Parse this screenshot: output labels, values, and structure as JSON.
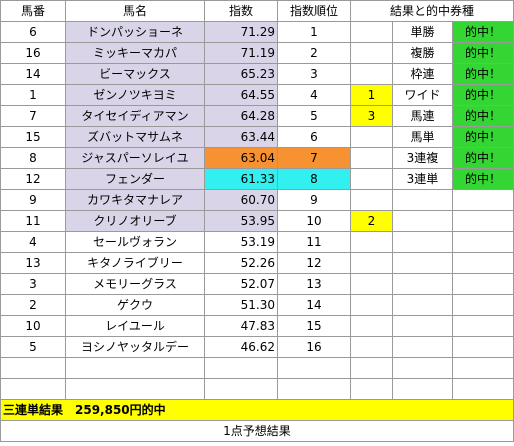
{
  "headers": {
    "num": "馬番",
    "name": "馬名",
    "index": "指数",
    "rank": "指数順位",
    "result": "結果と的中券種"
  },
  "rows": [
    {
      "num": "6",
      "name": "ドンパッショーネ",
      "index": "71.29",
      "rank": "1",
      "mark": "",
      "bet": "単勝",
      "hit": "的中！"
    },
    {
      "num": "16",
      "name": "ミッキーマカパ",
      "index": "71.19",
      "rank": "2",
      "mark": "",
      "bet": "複勝",
      "hit": "的中！"
    },
    {
      "num": "14",
      "name": "ビーマックス",
      "index": "65.23",
      "rank": "3",
      "mark": "",
      "bet": "枠連",
      "hit": "的中！"
    },
    {
      "num": "1",
      "name": "ゼンノツキヨミ",
      "index": "64.55",
      "rank": "4",
      "mark": "1",
      "bet": "ワイド",
      "hit": "的中！"
    },
    {
      "num": "7",
      "name": "タイセイディアマン",
      "index": "64.28",
      "rank": "5",
      "mark": "3",
      "bet": "馬連",
      "hit": "的中！"
    },
    {
      "num": "15",
      "name": "ズバットマサムネ",
      "index": "63.44",
      "rank": "6",
      "mark": "",
      "bet": "馬単",
      "hit": "的中！"
    },
    {
      "num": "8",
      "name": "ジャスパーソレイユ",
      "index": "63.04",
      "rank": "7",
      "mark": "",
      "bet": "3連複",
      "hit": "的中！"
    },
    {
      "num": "12",
      "name": "フェンダー",
      "index": "61.33",
      "rank": "8",
      "mark": "",
      "bet": "3連単",
      "hit": "的中！"
    },
    {
      "num": "9",
      "name": "カワキタマナレア",
      "index": "60.70",
      "rank": "9",
      "mark": "",
      "bet": "",
      "hit": ""
    },
    {
      "num": "11",
      "name": "クリノオリーブ",
      "index": "53.95",
      "rank": "10",
      "mark": "2",
      "bet": "",
      "hit": ""
    },
    {
      "num": "4",
      "name": "セールヴォラン",
      "index": "53.19",
      "rank": "11",
      "mark": "",
      "bet": "",
      "hit": ""
    },
    {
      "num": "13",
      "name": "キタノライブリー",
      "index": "52.26",
      "rank": "12",
      "mark": "",
      "bet": "",
      "hit": ""
    },
    {
      "num": "3",
      "name": "メモリーグラス",
      "index": "52.07",
      "rank": "13",
      "mark": "",
      "bet": "",
      "hit": ""
    },
    {
      "num": "2",
      "name": "ゲクウ",
      "index": "51.30",
      "rank": "14",
      "mark": "",
      "bet": "",
      "hit": ""
    },
    {
      "num": "10",
      "name": "レイユール",
      "index": "47.83",
      "rank": "15",
      "mark": "",
      "bet": "",
      "hit": ""
    },
    {
      "num": "5",
      "name": "ヨシノヤッタルデー",
      "index": "46.62",
      "rank": "16",
      "mark": "",
      "bet": "",
      "hit": ""
    }
  ],
  "summary": "三連単結果　259,850円的中",
  "footer": "1点予想結果",
  "colors": {
    "lavender": "#d9d4e8",
    "yellow": "#ffff00",
    "green": "#33d633",
    "orange": "#f79232",
    "cyan": "#33f0f0"
  }
}
